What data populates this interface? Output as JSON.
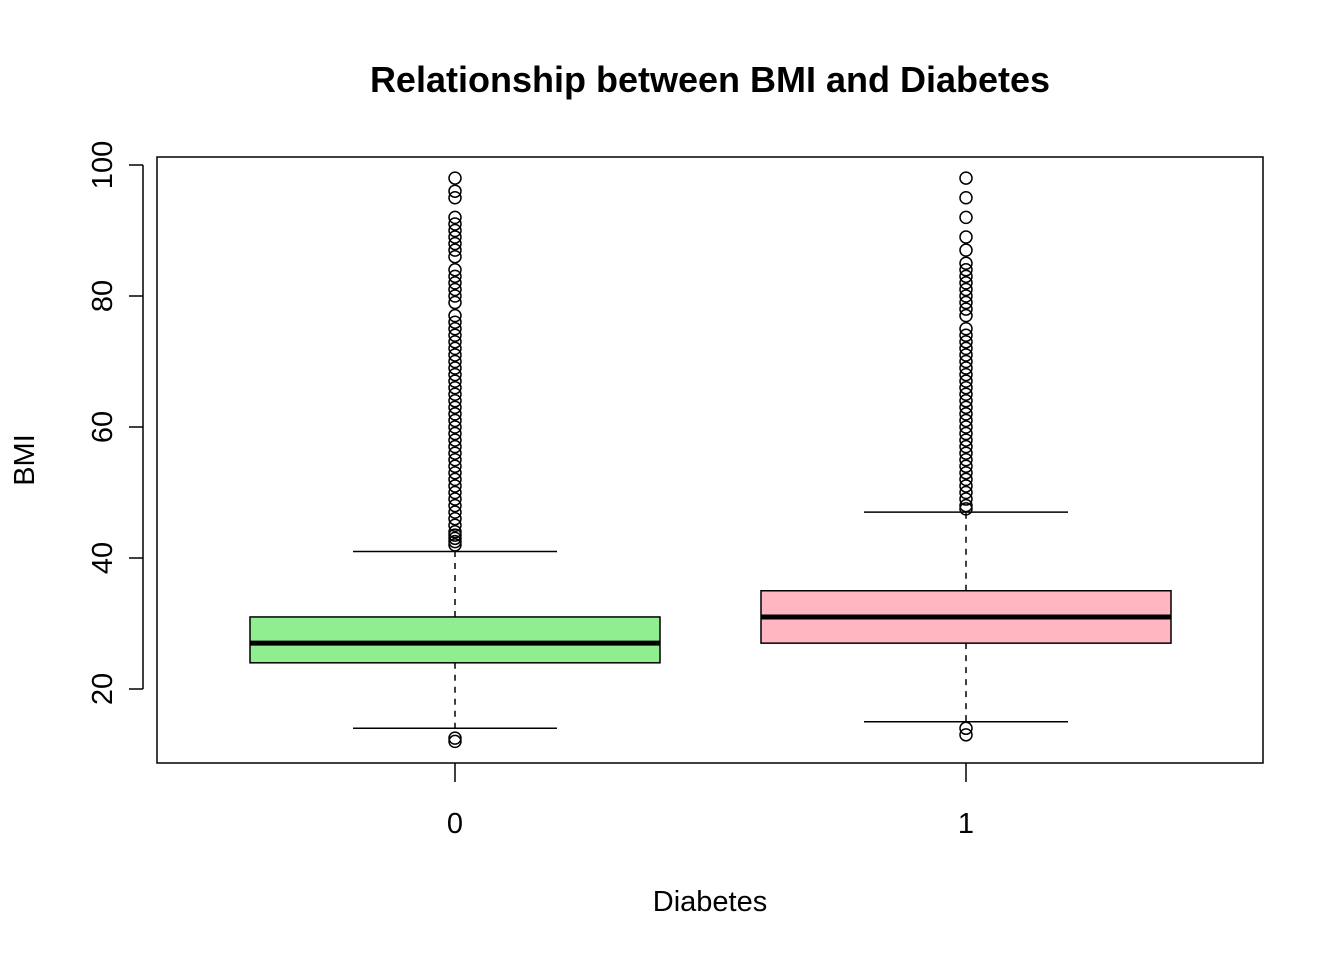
{
  "chart_data": {
    "type": "boxplot",
    "title": "Relationship between BMI and Diabetes",
    "xlabel": "Diabetes",
    "ylabel": "BMI",
    "categories": [
      "0",
      "1"
    ],
    "ylim": [
      10,
      100
    ],
    "yticks": [
      20,
      40,
      60,
      80,
      100
    ],
    "grid": false,
    "boxes": [
      {
        "category": "0",
        "color": "#90EE90",
        "whisker_low": 14,
        "q1": 24,
        "median": 27,
        "q3": 31,
        "whisker_high": 41,
        "outliers_low": [
          12,
          12.5
        ],
        "outliers_high": [
          42,
          42.5,
          43,
          43.5,
          44,
          45,
          46,
          47,
          48,
          49,
          50,
          51,
          52,
          53,
          54,
          55,
          56,
          57,
          58,
          59,
          60,
          61,
          62,
          63,
          64,
          65,
          66,
          67,
          68,
          69,
          70,
          71,
          72,
          73,
          74,
          75,
          76,
          77,
          79,
          80,
          81,
          82,
          83,
          84,
          86,
          87,
          88,
          89,
          90,
          91,
          92,
          95,
          96,
          98
        ]
      },
      {
        "category": "1",
        "color": "#FFB6C1",
        "whisker_low": 15,
        "q1": 27,
        "median": 31,
        "q3": 35,
        "whisker_high": 47,
        "outliers_low": [
          13,
          14
        ],
        "outliers_high": [
          47.5,
          48,
          49,
          50,
          51,
          52,
          53,
          54,
          55,
          56,
          57,
          58,
          59,
          60,
          61,
          62,
          63,
          64,
          65,
          66,
          67,
          68,
          69,
          70,
          71,
          72,
          73,
          74,
          75,
          77,
          78,
          79,
          80,
          81,
          82,
          83,
          84,
          85,
          87,
          89,
          92,
          95,
          98
        ]
      }
    ]
  }
}
